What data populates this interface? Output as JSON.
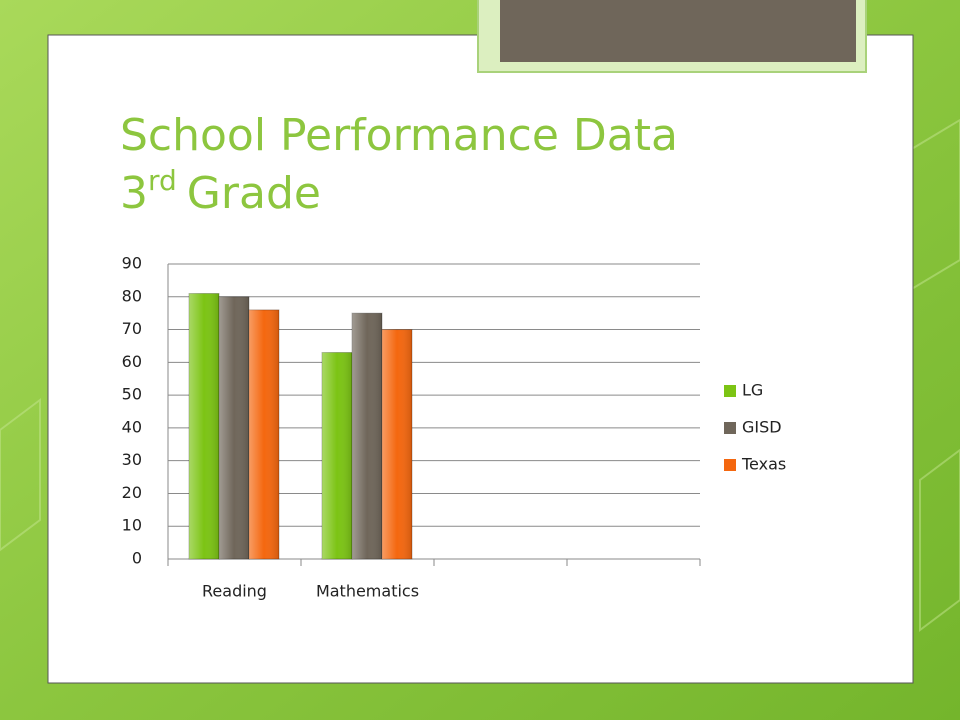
{
  "chart_data": {
    "type": "bar",
    "title": "School Performance Data",
    "subtitle": [
      "3",
      "rd",
      "Grade"
    ],
    "categories": [
      "Reading",
      "Mathematics",
      null,
      null
    ],
    "series": [
      {
        "name": "LG",
        "color": "#7cc414",
        "values": [
          81,
          63,
          null,
          null
        ]
      },
      {
        "name": "GISD",
        "color": "#6f665a",
        "values": [
          80,
          75,
          null,
          null
        ]
      },
      {
        "name": "Texas",
        "color": "#f4670f",
        "values": [
          76,
          70,
          null,
          null
        ]
      }
    ],
    "ylim": [
      0,
      90
    ],
    "yticks": [
      0,
      10,
      20,
      30,
      40,
      50,
      60,
      70,
      80,
      90
    ],
    "grid": true,
    "legend": "right"
  }
}
